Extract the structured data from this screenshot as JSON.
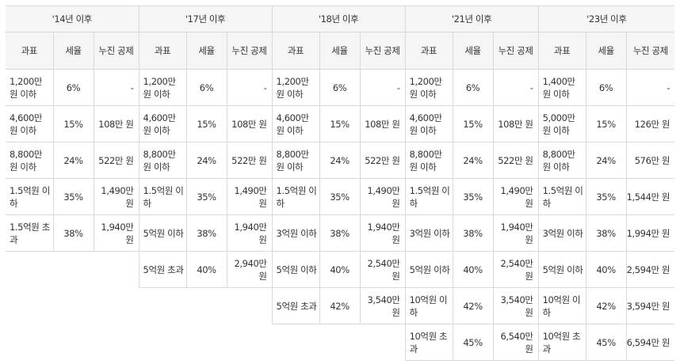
{
  "periods": [
    "'14년 이후",
    "'17년 이후",
    "'18년 이후",
    "'21년 이후",
    "'23년 이후"
  ],
  "headers": {
    "base": "과표",
    "rate": "세율",
    "deduction": "누진 공제"
  },
  "columns": [
    {
      "rows": [
        {
          "base": "1,200만 원 이하",
          "rate": "6%",
          "deduction": "-"
        },
        {
          "base": "4,600만 원 이하",
          "rate": "15%",
          "deduction": "108만 원"
        },
        {
          "base": "8,800만 원 이하",
          "rate": "24%",
          "deduction": "522만 원"
        },
        {
          "base": "1.5억원 이하",
          "rate": "35%",
          "deduction": "1,490만 원"
        },
        {
          "base": "1.5억원 초과",
          "rate": "38%",
          "deduction": "1,940만 원"
        }
      ]
    },
    {
      "rows": [
        {
          "base": "1,200만 원 이하",
          "rate": "6%",
          "deduction": "-"
        },
        {
          "base": "4,600만 원 이하",
          "rate": "15%",
          "deduction": "108만 원"
        },
        {
          "base": "8,800만 원 이하",
          "rate": "24%",
          "deduction": "522만 원"
        },
        {
          "base": "1.5억원 이하",
          "rate": "35%",
          "deduction": "1,490만 원"
        },
        {
          "base": "5억원 이하",
          "rate": "38%",
          "deduction": "1,940만 원"
        },
        {
          "base": "5억원 초과",
          "rate": "40%",
          "deduction": "2,940만 원"
        }
      ]
    },
    {
      "rows": [
        {
          "base": "1,200만 원 이하",
          "rate": "6%",
          "deduction": "-"
        },
        {
          "base": "4,600만 원 이하",
          "rate": "15%",
          "deduction": "108만 원"
        },
        {
          "base": "8,800만 원 이하",
          "rate": "24%",
          "deduction": "522만 원"
        },
        {
          "base": "1.5억원 이하",
          "rate": "35%",
          "deduction": "1,490만 원"
        },
        {
          "base": "3억원 이하",
          "rate": "38%",
          "deduction": "1,940만 원"
        },
        {
          "base": "5억원 이하",
          "rate": "40%",
          "deduction": "2,540만 원"
        },
        {
          "base": "5억원 초과",
          "rate": "42%",
          "deduction": "3,540만 원"
        }
      ]
    },
    {
      "rows": [
        {
          "base": "1,200만 원 이하",
          "rate": "6%",
          "deduction": "-"
        },
        {
          "base": "4,600만 원 이하",
          "rate": "15%",
          "deduction": "108만 원"
        },
        {
          "base": "8,800만 원 이하",
          "rate": "24%",
          "deduction": "522만 원"
        },
        {
          "base": "1.5억원 이하",
          "rate": "35%",
          "deduction": "1,490만 원"
        },
        {
          "base": "3억원 이하",
          "rate": "38%",
          "deduction": "1,940만 원"
        },
        {
          "base": "5억원 이하",
          "rate": "40%",
          "deduction": "2,540만 원"
        },
        {
          "base": "10억원 이하",
          "rate": "42%",
          "deduction": "3,540만 원"
        },
        {
          "base": "10억원 초과",
          "rate": "45%",
          "deduction": "6,540만 원"
        }
      ]
    },
    {
      "rows": [
        {
          "base": "1,400만 원 이하",
          "rate": "6%",
          "deduction": "-"
        },
        {
          "base": "5,000만 원 이하",
          "rate": "15%",
          "deduction": "126만 원"
        },
        {
          "base": "8,800만 원 이하",
          "rate": "24%",
          "deduction": "576만 원"
        },
        {
          "base": "1.5억원 이하",
          "rate": "35%",
          "deduction": "1,544만 원"
        },
        {
          "base": "3억원 이하",
          "rate": "38%",
          "deduction": "1,994만 원"
        },
        {
          "base": "5억원 이하",
          "rate": "40%",
          "deduction": "2,594만 원"
        },
        {
          "base": "10억원 이하",
          "rate": "42%",
          "deduction": "3,594만 원"
        },
        {
          "base": "10억원 초과",
          "rate": "45%",
          "deduction": "6,594만 원"
        }
      ]
    }
  ]
}
